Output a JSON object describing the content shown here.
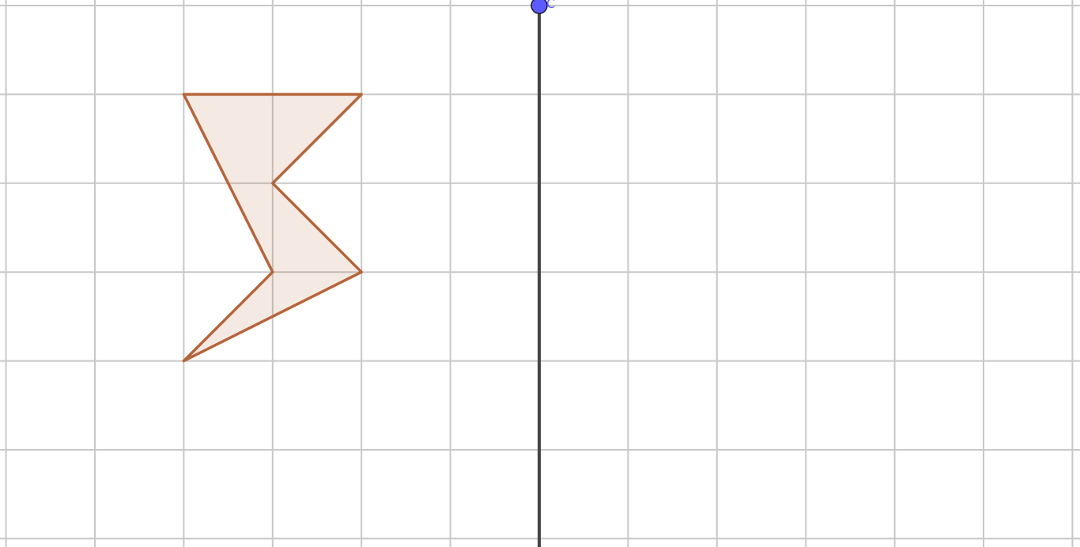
{
  "app": {
    "view": "Graphics"
  },
  "grid": {
    "visible": true,
    "step": 1,
    "x_range": [
      -6,
      6
    ],
    "y_range": [
      -6,
      0
    ]
  },
  "mirror_line": {
    "type": "vertical",
    "x": 0,
    "color": "#444444"
  },
  "polygon": {
    "color": "#b5653a",
    "vertices": [
      {
        "x": -4,
        "y": -1
      },
      {
        "x": -2,
        "y": -1
      },
      {
        "x": -3,
        "y": -2
      },
      {
        "x": -2,
        "y": -3
      },
      {
        "x": -4,
        "y": -4
      },
      {
        "x": -3,
        "y": -3
      }
    ]
  },
  "point": {
    "label": "C",
    "x": 0,
    "y": 0,
    "color": "#5b5bff"
  }
}
